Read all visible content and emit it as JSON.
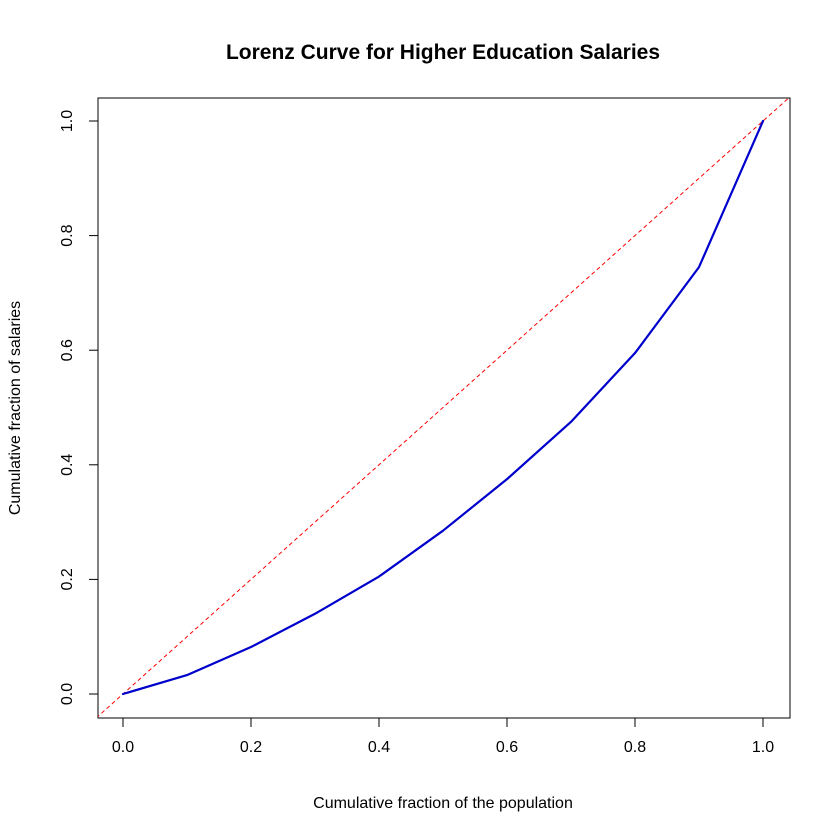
{
  "chart_data": {
    "type": "line",
    "title": "Lorenz Curve for Higher Education Salaries",
    "xlabel": "Cumulative fraction of the population",
    "ylabel": "Cumulative fraction of salaries",
    "xlim": [
      0,
      1
    ],
    "ylim": [
      0,
      1
    ],
    "grid": false,
    "x_ticks": [
      "0.0",
      "0.2",
      "0.4",
      "0.6",
      "0.8",
      "1.0"
    ],
    "y_ticks": [
      "0.0",
      "0.2",
      "0.4",
      "0.6",
      "0.8",
      "1.0"
    ],
    "series": [
      {
        "color": "#0000cc",
        "x": [
          0.0,
          0.1,
          0.2,
          0.3,
          0.4,
          0.5,
          0.6,
          0.7,
          0.8,
          0.9,
          1.0
        ],
        "y": [
          0.0,
          0.033,
          0.082,
          0.14,
          0.205,
          0.285,
          0.375,
          0.475,
          0.595,
          0.745,
          1.0
        ]
      }
    ],
    "reference_line": {
      "color": "#ff0000",
      "style": "dashed",
      "x": [
        0,
        1
      ],
      "y": [
        0,
        1
      ]
    }
  }
}
